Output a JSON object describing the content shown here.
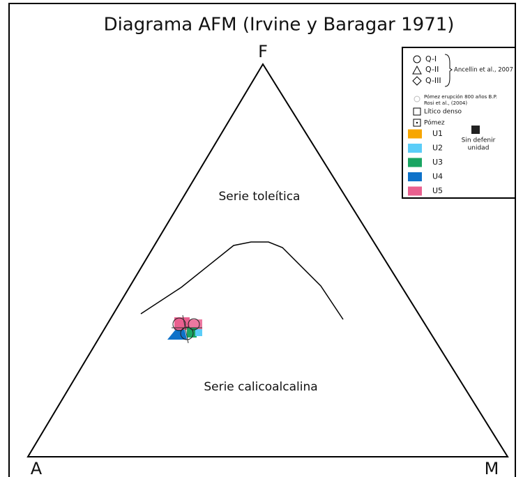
{
  "title": "Diagrama AFM (Irvine y Baragar 1971)",
  "vertices": {
    "top": "F",
    "left": "A",
    "right": "M"
  },
  "regions": [
    "Serie toleítica",
    "Serie calicoalcalina"
  ],
  "legend": {
    "symbols": [
      "Q-I",
      "Q-II",
      "Q-III"
    ],
    "symbols_source": "Ancellin et al., 2007",
    "pumice_note": [
      "Pómez erupción 800 años B.P.",
      "Rosi et al., (2004)"
    ],
    "types": [
      "Lítico denso",
      "Pómez"
    ],
    "units": [
      {
        "name": "U1",
        "color": "#f7a600"
      },
      {
        "name": "U2",
        "color": "#5bcdf8"
      },
      {
        "name": "U3",
        "color": "#1aa562"
      },
      {
        "name": "U4",
        "color": "#0e72c9"
      },
      {
        "name": "U5",
        "color": "#e9608f"
      }
    ],
    "undefined_unit": [
      "Sin defenir",
      "unidad"
    ]
  }
}
